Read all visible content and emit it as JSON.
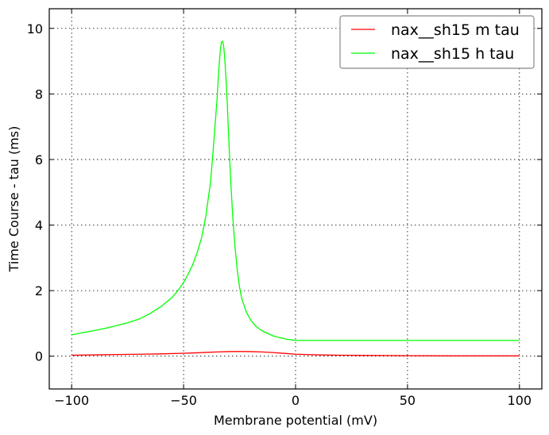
{
  "chart_data": {
    "type": "line",
    "title": "",
    "xlabel": "Membrane potential (mV)",
    "ylabel": "Time Course - tau (ms)",
    "xlim": [
      -110,
      110
    ],
    "ylim": [
      -1,
      10.6
    ],
    "xticks": [
      -100,
      -50,
      0,
      50,
      100
    ],
    "xtick_labels": [
      "−100",
      "−50",
      "0",
      "50",
      "100"
    ],
    "yticks": [
      0,
      2,
      4,
      6,
      8,
      10
    ],
    "ytick_labels": [
      "0",
      "2",
      "4",
      "6",
      "8",
      "10"
    ],
    "grid": true,
    "grid_style": "dotted",
    "legend_position": "top-right",
    "series": [
      {
        "name": "nax__sh15 m tau",
        "color": "#ff0000",
        "x": [
          -100,
          -90,
          -80,
          -70,
          -60,
          -50,
          -45,
          -40,
          -35,
          -30,
          -26,
          -20,
          -15,
          -10,
          -5,
          0,
          10,
          20,
          30,
          40,
          50,
          60,
          70,
          80,
          90,
          100
        ],
        "y": [
          0.03,
          0.04,
          0.05,
          0.06,
          0.07,
          0.09,
          0.1,
          0.115,
          0.13,
          0.14,
          0.145,
          0.14,
          0.13,
          0.11,
          0.085,
          0.06,
          0.04,
          0.03,
          0.025,
          0.02,
          0.015,
          0.012,
          0.01,
          0.01,
          0.01,
          0.01
        ]
      },
      {
        "name": "nax__sh15 h tau",
        "color": "#00ff00",
        "x": [
          -100,
          -95,
          -90,
          -85,
          -80,
          -75,
          -70,
          -65,
          -60,
          -55,
          -52,
          -50,
          -48,
          -46,
          -44,
          -42,
          -40,
          -38,
          -37,
          -36,
          -35,
          -34.5,
          -34,
          -33.5,
          -33,
          -32.5,
          -32,
          -31.5,
          -31,
          -30.5,
          -30,
          -29,
          -28,
          -27,
          -26,
          -25,
          -24,
          -22,
          -20,
          -18,
          -16,
          -14,
          -12,
          -10,
          -8,
          -6,
          -4,
          -2,
          0,
          10,
          20,
          30,
          40,
          50,
          60,
          70,
          80,
          90,
          100
        ],
        "y": [
          0.65,
          0.72,
          0.78,
          0.85,
          0.93,
          1.02,
          1.13,
          1.3,
          1.52,
          1.8,
          2.05,
          2.25,
          2.5,
          2.78,
          3.15,
          3.6,
          4.3,
          5.3,
          6.1,
          7.0,
          7.9,
          8.5,
          9.0,
          9.4,
          9.6,
          9.6,
          9.4,
          8.95,
          8.4,
          7.7,
          6.9,
          5.4,
          4.2,
          3.3,
          2.6,
          2.1,
          1.75,
          1.35,
          1.1,
          0.93,
          0.82,
          0.74,
          0.68,
          0.62,
          0.58,
          0.55,
          0.52,
          0.5,
          0.48,
          0.48,
          0.48,
          0.48,
          0.48,
          0.48,
          0.48,
          0.48,
          0.48,
          0.48,
          0.48
        ]
      }
    ]
  }
}
